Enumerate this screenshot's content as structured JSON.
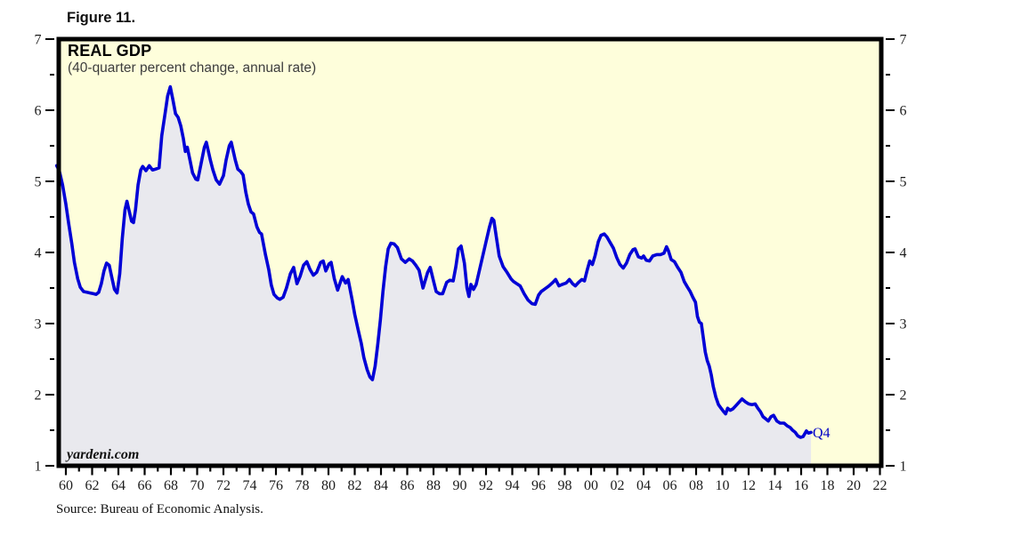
{
  "figure_label": "Figure 11.",
  "source_note": "Source: Bureau of Economic Analysis.",
  "watermark": "yardeni.com",
  "chart_data": {
    "type": "area",
    "title": "REAL GDP",
    "subtitle": "(40-quarter percent change, annual rate)",
    "last_point_label": "Q4",
    "grid": false,
    "legend": null,
    "colors": {
      "line": "#0000d6",
      "area_fill": "#e9e9ee",
      "plot_background": "#fefedb",
      "border": "#000000",
      "tick_label_text": "#1c1c1c"
    },
    "x_axis": {
      "min": 1959.3,
      "max": 2022.35,
      "major_tick_step_years": 2,
      "minor_tick_step_years": 1,
      "first_labeled_year": 1960,
      "last_labeled_year": 2022,
      "tick_labels": [
        "60",
        "62",
        "64",
        "66",
        "68",
        "70",
        "72",
        "74",
        "76",
        "78",
        "80",
        "82",
        "84",
        "86",
        "88",
        "90",
        "92",
        "94",
        "96",
        "98",
        "00",
        "02",
        "04",
        "06",
        "08",
        "10",
        "12",
        "14",
        "16",
        "18",
        "20",
        "22"
      ]
    },
    "y_axis": {
      "min": 1,
      "max": 7,
      "major_tick_step": 1,
      "minor_tick_step": 0.5,
      "labels_both_sides": true,
      "tick_labels": [
        "1",
        "2",
        "3",
        "4",
        "5",
        "6",
        "7"
      ]
    },
    "series": [
      {
        "name": "Real GDP, 40-quarter percent change at annual rate",
        "points": [
          [
            1959.3,
            5.22
          ],
          [
            1959.5,
            5.15
          ],
          [
            1959.75,
            4.95
          ],
          [
            1960.0,
            4.68
          ],
          [
            1960.2,
            4.42
          ],
          [
            1960.45,
            4.13
          ],
          [
            1960.65,
            3.86
          ],
          [
            1960.9,
            3.63
          ],
          [
            1961.1,
            3.51
          ],
          [
            1961.35,
            3.45
          ],
          [
            1961.6,
            3.44
          ],
          [
            1961.85,
            3.43
          ],
          [
            1962.1,
            3.42
          ],
          [
            1962.3,
            3.41
          ],
          [
            1962.5,
            3.44
          ],
          [
            1962.7,
            3.56
          ],
          [
            1962.9,
            3.74
          ],
          [
            1963.1,
            3.85
          ],
          [
            1963.3,
            3.82
          ],
          [
            1963.5,
            3.65
          ],
          [
            1963.7,
            3.48
          ],
          [
            1963.9,
            3.43
          ],
          [
            1964.1,
            3.7
          ],
          [
            1964.3,
            4.2
          ],
          [
            1964.5,
            4.6
          ],
          [
            1964.65,
            4.72
          ],
          [
            1964.8,
            4.6
          ],
          [
            1965.0,
            4.44
          ],
          [
            1965.15,
            4.42
          ],
          [
            1965.3,
            4.6
          ],
          [
            1965.5,
            4.95
          ],
          [
            1965.7,
            5.16
          ],
          [
            1965.85,
            5.21
          ],
          [
            1966.1,
            5.15
          ],
          [
            1966.35,
            5.22
          ],
          [
            1966.6,
            5.16
          ],
          [
            1966.8,
            5.17
          ],
          [
            1967.1,
            5.19
          ],
          [
            1967.3,
            5.64
          ],
          [
            1967.55,
            5.95
          ],
          [
            1967.75,
            6.2
          ],
          [
            1967.95,
            6.33
          ],
          [
            1968.15,
            6.15
          ],
          [
            1968.35,
            5.95
          ],
          [
            1968.55,
            5.9
          ],
          [
            1968.75,
            5.78
          ],
          [
            1968.95,
            5.6
          ],
          [
            1969.1,
            5.42
          ],
          [
            1969.25,
            5.48
          ],
          [
            1969.45,
            5.3
          ],
          [
            1969.65,
            5.12
          ],
          [
            1969.9,
            5.03
          ],
          [
            1970.05,
            5.02
          ],
          [
            1970.3,
            5.25
          ],
          [
            1970.55,
            5.48
          ],
          [
            1970.7,
            5.55
          ],
          [
            1971.0,
            5.3
          ],
          [
            1971.2,
            5.16
          ],
          [
            1971.45,
            5.02
          ],
          [
            1971.7,
            4.96
          ],
          [
            1972.0,
            5.08
          ],
          [
            1972.2,
            5.3
          ],
          [
            1972.45,
            5.5
          ],
          [
            1972.6,
            5.55
          ],
          [
            1972.9,
            5.3
          ],
          [
            1973.1,
            5.17
          ],
          [
            1973.3,
            5.14
          ],
          [
            1973.5,
            5.09
          ],
          [
            1973.7,
            4.85
          ],
          [
            1973.9,
            4.68
          ],
          [
            1974.1,
            4.57
          ],
          [
            1974.3,
            4.54
          ],
          [
            1974.55,
            4.36
          ],
          [
            1974.75,
            4.28
          ],
          [
            1974.9,
            4.26
          ],
          [
            1975.2,
            3.97
          ],
          [
            1975.45,
            3.76
          ],
          [
            1975.65,
            3.54
          ],
          [
            1975.85,
            3.41
          ],
          [
            1976.1,
            3.36
          ],
          [
            1976.3,
            3.34
          ],
          [
            1976.55,
            3.37
          ],
          [
            1976.8,
            3.5
          ],
          [
            1977.1,
            3.7
          ],
          [
            1977.35,
            3.79
          ],
          [
            1977.6,
            3.56
          ],
          [
            1977.85,
            3.67
          ],
          [
            1978.1,
            3.82
          ],
          [
            1978.35,
            3.87
          ],
          [
            1978.6,
            3.76
          ],
          [
            1978.85,
            3.68
          ],
          [
            1979.1,
            3.72
          ],
          [
            1979.4,
            3.86
          ],
          [
            1979.6,
            3.88
          ],
          [
            1979.8,
            3.74
          ],
          [
            1980.05,
            3.84
          ],
          [
            1980.2,
            3.86
          ],
          [
            1980.45,
            3.63
          ],
          [
            1980.7,
            3.47
          ],
          [
            1980.9,
            3.58
          ],
          [
            1981.05,
            3.66
          ],
          [
            1981.3,
            3.57
          ],
          [
            1981.5,
            3.62
          ],
          [
            1981.8,
            3.34
          ],
          [
            1982.0,
            3.13
          ],
          [
            1982.25,
            2.92
          ],
          [
            1982.5,
            2.72
          ],
          [
            1982.7,
            2.52
          ],
          [
            1982.95,
            2.35
          ],
          [
            1983.15,
            2.25
          ],
          [
            1983.35,
            2.21
          ],
          [
            1983.55,
            2.4
          ],
          [
            1983.75,
            2.7
          ],
          [
            1983.95,
            3.05
          ],
          [
            1984.15,
            3.45
          ],
          [
            1984.35,
            3.8
          ],
          [
            1984.55,
            4.05
          ],
          [
            1984.75,
            4.13
          ],
          [
            1985.0,
            4.12
          ],
          [
            1985.25,
            4.07
          ],
          [
            1985.55,
            3.91
          ],
          [
            1985.85,
            3.86
          ],
          [
            1986.15,
            3.91
          ],
          [
            1986.4,
            3.88
          ],
          [
            1986.65,
            3.82
          ],
          [
            1986.9,
            3.75
          ],
          [
            1987.2,
            3.5
          ],
          [
            1987.55,
            3.72
          ],
          [
            1987.75,
            3.79
          ],
          [
            1988.0,
            3.6
          ],
          [
            1988.2,
            3.45
          ],
          [
            1988.45,
            3.42
          ],
          [
            1988.7,
            3.42
          ],
          [
            1989.0,
            3.58
          ],
          [
            1989.25,
            3.61
          ],
          [
            1989.5,
            3.6
          ],
          [
            1989.7,
            3.8
          ],
          [
            1989.9,
            4.05
          ],
          [
            1990.1,
            4.09
          ],
          [
            1990.35,
            3.85
          ],
          [
            1990.55,
            3.5
          ],
          [
            1990.7,
            3.38
          ],
          [
            1990.85,
            3.55
          ],
          [
            1991.05,
            3.48
          ],
          [
            1991.25,
            3.55
          ],
          [
            1991.5,
            3.75
          ],
          [
            1991.75,
            3.95
          ],
          [
            1992.0,
            4.15
          ],
          [
            1992.25,
            4.35
          ],
          [
            1992.45,
            4.48
          ],
          [
            1992.6,
            4.45
          ],
          [
            1992.8,
            4.2
          ],
          [
            1993.0,
            3.95
          ],
          [
            1993.3,
            3.8
          ],
          [
            1993.6,
            3.72
          ],
          [
            1993.9,
            3.63
          ],
          [
            1994.1,
            3.59
          ],
          [
            1994.35,
            3.56
          ],
          [
            1994.6,
            3.53
          ],
          [
            1994.9,
            3.42
          ],
          [
            1995.2,
            3.33
          ],
          [
            1995.5,
            3.28
          ],
          [
            1995.75,
            3.27
          ],
          [
            1996.0,
            3.4
          ],
          [
            1996.2,
            3.45
          ],
          [
            1996.5,
            3.49
          ],
          [
            1996.8,
            3.53
          ],
          [
            1997.1,
            3.58
          ],
          [
            1997.3,
            3.62
          ],
          [
            1997.55,
            3.53
          ],
          [
            1997.8,
            3.55
          ],
          [
            1998.1,
            3.57
          ],
          [
            1998.35,
            3.62
          ],
          [
            1998.6,
            3.56
          ],
          [
            1998.8,
            3.53
          ],
          [
            1999.05,
            3.58
          ],
          [
            1999.3,
            3.62
          ],
          [
            1999.5,
            3.6
          ],
          [
            1999.7,
            3.75
          ],
          [
            1999.9,
            3.88
          ],
          [
            2000.1,
            3.83
          ],
          [
            2000.3,
            3.95
          ],
          [
            2000.55,
            4.15
          ],
          [
            2000.75,
            4.24
          ],
          [
            2001.0,
            4.26
          ],
          [
            2001.2,
            4.22
          ],
          [
            2001.45,
            4.14
          ],
          [
            2001.7,
            4.06
          ],
          [
            2001.95,
            3.93
          ],
          [
            2002.2,
            3.83
          ],
          [
            2002.45,
            3.78
          ],
          [
            2002.7,
            3.85
          ],
          [
            2002.95,
            3.97
          ],
          [
            2003.2,
            4.04
          ],
          [
            2003.35,
            4.05
          ],
          [
            2003.6,
            3.94
          ],
          [
            2003.85,
            3.92
          ],
          [
            2004.0,
            3.95
          ],
          [
            2004.2,
            3.89
          ],
          [
            2004.45,
            3.88
          ],
          [
            2004.7,
            3.95
          ],
          [
            2005.0,
            3.97
          ],
          [
            2005.3,
            3.97
          ],
          [
            2005.55,
            3.99
          ],
          [
            2005.75,
            4.08
          ],
          [
            2005.9,
            4.02
          ],
          [
            2006.1,
            3.9
          ],
          [
            2006.35,
            3.87
          ],
          [
            2006.6,
            3.79
          ],
          [
            2006.85,
            3.72
          ],
          [
            2007.1,
            3.59
          ],
          [
            2007.35,
            3.51
          ],
          [
            2007.55,
            3.45
          ],
          [
            2007.75,
            3.37
          ],
          [
            2007.95,
            3.3
          ],
          [
            2008.1,
            3.1
          ],
          [
            2008.25,
            3.02
          ],
          [
            2008.4,
            3.0
          ],
          [
            2008.55,
            2.8
          ],
          [
            2008.7,
            2.6
          ],
          [
            2008.85,
            2.48
          ],
          [
            2009.0,
            2.4
          ],
          [
            2009.15,
            2.28
          ],
          [
            2009.3,
            2.12
          ],
          [
            2009.5,
            1.97
          ],
          [
            2009.7,
            1.86
          ],
          [
            2009.9,
            1.81
          ],
          [
            2010.1,
            1.76
          ],
          [
            2010.25,
            1.73
          ],
          [
            2010.4,
            1.81
          ],
          [
            2010.6,
            1.78
          ],
          [
            2010.8,
            1.8
          ],
          [
            2011.0,
            1.84
          ],
          [
            2011.25,
            1.89
          ],
          [
            2011.5,
            1.94
          ],
          [
            2011.75,
            1.9
          ],
          [
            2012.0,
            1.87
          ],
          [
            2012.25,
            1.86
          ],
          [
            2012.5,
            1.87
          ],
          [
            2012.7,
            1.81
          ],
          [
            2012.9,
            1.76
          ],
          [
            2013.1,
            1.69
          ],
          [
            2013.3,
            1.66
          ],
          [
            2013.5,
            1.63
          ],
          [
            2013.7,
            1.69
          ],
          [
            2013.9,
            1.71
          ],
          [
            2014.15,
            1.63
          ],
          [
            2014.4,
            1.6
          ],
          [
            2014.7,
            1.6
          ],
          [
            2014.95,
            1.56
          ],
          [
            2015.15,
            1.54
          ],
          [
            2015.35,
            1.5
          ],
          [
            2015.55,
            1.47
          ],
          [
            2015.75,
            1.42
          ],
          [
            2015.95,
            1.4
          ],
          [
            2016.15,
            1.41
          ],
          [
            2016.4,
            1.49
          ],
          [
            2016.55,
            1.46
          ],
          [
            2016.75,
            1.47
          ]
        ]
      }
    ]
  }
}
